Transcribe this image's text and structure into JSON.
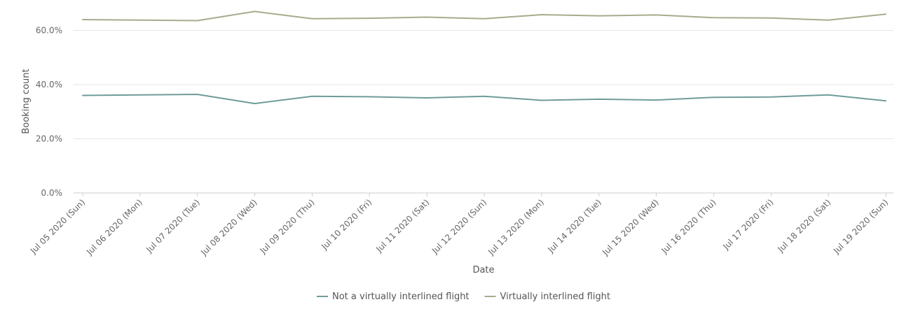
{
  "chart_data": {
    "type": "line",
    "xlabel": "Date",
    "ylabel": "Booking count",
    "ylim": [
      0,
      70
    ],
    "yticks": [
      0,
      20,
      40,
      60
    ],
    "ytick_labels": [
      "0.0%",
      "20.0%",
      "40.0%",
      "60.0%"
    ],
    "grid": true,
    "legend_position": "bottom",
    "categories": [
      "Jul 05 2020 (Sun)",
      "Jul 06 2020 (Mon)",
      "Jul 07 2020 (Tue)",
      "Jul 08 2020 (Wed)",
      "Jul 09 2020 (Thu)",
      "Jul 10 2020 (Fri)",
      "Jul 11 2020 (Sat)",
      "Jul 12 2020 (Sun)",
      "Jul 13 2020 (Mon)",
      "Jul 14 2020 (Tue)",
      "Jul 15 2020 (Wed)",
      "Jul 16 2020 (Thu)",
      "Jul 17 2020 (Fri)",
      "Jul 18 2020 (Sat)",
      "Jul 19 2020 (Sun)"
    ],
    "series": [
      {
        "name": "Not a virtually interlined flight",
        "color": "#6f9c9a",
        "values": [
          36.0,
          36.2,
          36.4,
          33.0,
          35.7,
          35.5,
          35.1,
          35.7,
          34.2,
          34.6,
          34.3,
          35.3,
          35.4,
          36.2,
          34.0
        ]
      },
      {
        "name": "Virtually interlined flight",
        "color": "#a8ab8d",
        "values": [
          64.0,
          63.8,
          63.6,
          67.0,
          64.3,
          64.5,
          64.9,
          64.3,
          65.8,
          65.4,
          65.7,
          64.7,
          64.6,
          63.8,
          66.0
        ]
      }
    ]
  }
}
